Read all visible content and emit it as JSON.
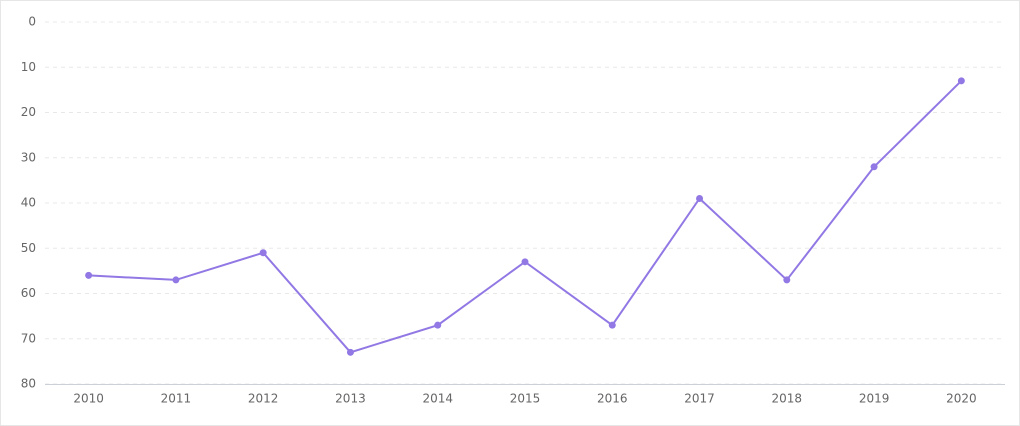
{
  "chart_data": {
    "type": "line",
    "categories": [
      "2010",
      "2011",
      "2012",
      "2013",
      "2014",
      "2015",
      "2016",
      "2017",
      "2018",
      "2019",
      "2020"
    ],
    "values": [
      56,
      57,
      51,
      73,
      67,
      53,
      67,
      39,
      57,
      32,
      13
    ],
    "color": "#9178e4",
    "ylim": [
      80,
      0
    ],
    "yticks": [
      0,
      10,
      20,
      30,
      40,
      50,
      60,
      70,
      80
    ],
    "grid": true
  }
}
